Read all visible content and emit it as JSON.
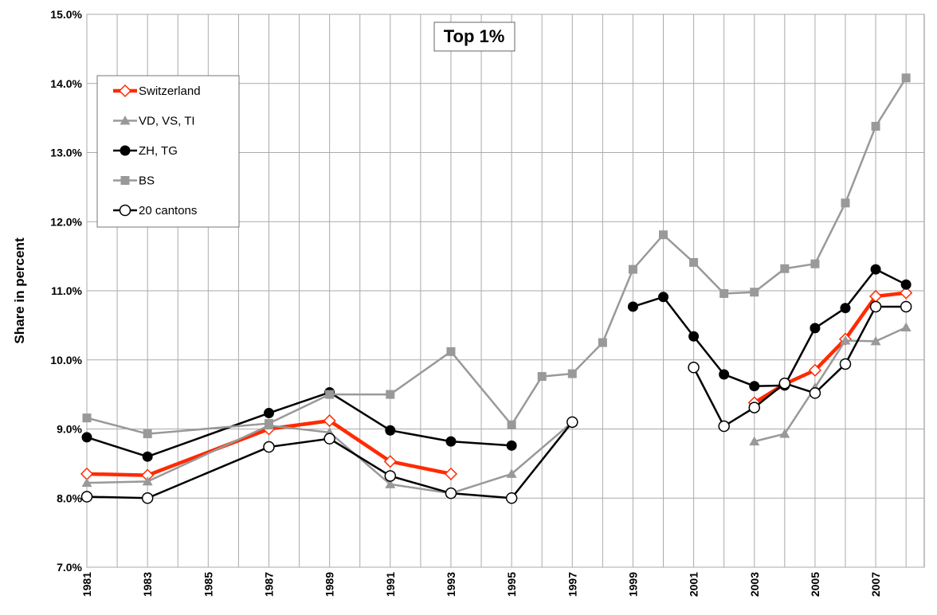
{
  "chart_data": {
    "type": "line",
    "title": "Top 1%",
    "y_label": "Share in percent",
    "ylim": [
      7,
      15
    ],
    "yticks": [
      {
        "value": 7,
        "label": "7.0%"
      },
      {
        "value": 8,
        "label": "8.0%"
      },
      {
        "value": 9,
        "label": "9.0%"
      },
      {
        "value": 10,
        "label": "10.0%"
      },
      {
        "value": 11,
        "label": "11.0%"
      },
      {
        "value": 12,
        "label": "12.0%"
      },
      {
        "value": 13,
        "label": "13.0%"
      },
      {
        "value": 14,
        "label": "14.0%"
      },
      {
        "value": 15,
        "label": "15.0%"
      }
    ],
    "xlim": [
      1981,
      2008.6
    ],
    "xticks": [
      1981,
      1983,
      1985,
      1987,
      1989,
      1991,
      1993,
      1995,
      1997,
      1999,
      2001,
      2003,
      2005,
      2007
    ],
    "minor_xticks": [
      1982,
      1984,
      1986,
      1988,
      1990,
      1992,
      1994,
      1996,
      1998,
      2000,
      2002,
      2004,
      2006,
      2008
    ],
    "grid": true,
    "series": [
      {
        "name": "Switzerland",
        "color": "#ff2a00",
        "marker": "diamond-open",
        "x": [
          1981,
          1983,
          1987,
          1989,
          1991,
          1993,
          1995,
          2003,
          2004,
          2005,
          2006,
          2007,
          2008
        ],
        "values": [
          8.35,
          8.33,
          9.0,
          9.12,
          8.53,
          8.35,
          null,
          9.38,
          9.65,
          9.85,
          10.3,
          10.92,
          10.97
        ]
      },
      {
        "name": "VD, VS, TI",
        "color": "#999999",
        "marker": "triangle",
        "x": [
          1981,
          1983,
          1987,
          1989,
          1991,
          1993,
          1995,
          1997,
          1999,
          2003,
          2004,
          2005,
          2006,
          2007,
          2008
        ],
        "values": [
          8.22,
          8.24,
          9.05,
          8.95,
          8.2,
          8.07,
          8.35,
          9.1,
          null,
          8.82,
          8.93,
          9.6,
          10.28,
          10.27,
          10.47
        ]
      },
      {
        "name": "ZH, TG",
        "color": "#000000",
        "marker": "circle",
        "x": [
          1981,
          1983,
          1987,
          1989,
          1991,
          1993,
          1995,
          1997,
          1999,
          2000,
          2001,
          2002,
          2003,
          2004,
          2005,
          2006,
          2007,
          2008
        ],
        "values": [
          8.88,
          8.6,
          9.23,
          9.53,
          8.98,
          8.82,
          8.76,
          null,
          10.77,
          10.91,
          10.34,
          9.79,
          9.62,
          9.63,
          10.46,
          10.75,
          11.31,
          11.09
        ]
      },
      {
        "name": "BS",
        "color": "#999999",
        "marker": "square",
        "x": [
          1981,
          1983,
          1987,
          1989,
          1991,
          1993,
          1995,
          1996,
          1997,
          1998,
          1999,
          2000,
          2001,
          2002,
          2003,
          2004,
          2005,
          2006,
          2007,
          2008
        ],
        "values": [
          9.16,
          8.93,
          9.08,
          9.5,
          9.5,
          10.12,
          9.06,
          9.76,
          9.8,
          10.25,
          11.31,
          11.81,
          11.41,
          10.96,
          10.98,
          11.32,
          11.39,
          12.27,
          13.38,
          14.08
        ]
      },
      {
        "name": "20 cantons",
        "color": "#000000",
        "marker": "circle-open",
        "x": [
          1981,
          1983,
          1987,
          1989,
          1991,
          1993,
          1995,
          1997,
          1999,
          2001,
          2002,
          2003,
          2004,
          2005,
          2006,
          2007,
          2008
        ],
        "values": [
          8.02,
          8.0,
          8.74,
          8.86,
          8.32,
          8.07,
          8.0,
          9.1,
          null,
          9.89,
          9.04,
          9.31,
          9.66,
          9.52,
          9.94,
          10.77,
          10.77
        ]
      }
    ]
  }
}
